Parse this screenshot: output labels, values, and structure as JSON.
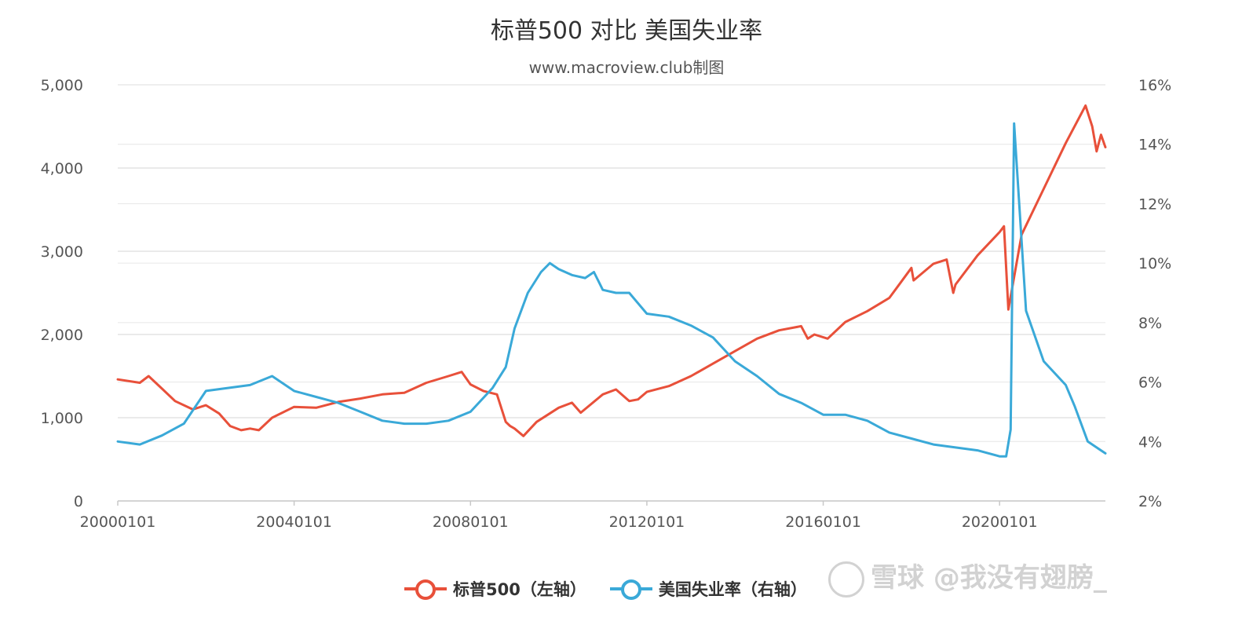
{
  "chart_data": {
    "type": "line",
    "title": "标普500 对比 美国失业率",
    "subtitle": "www.macroview.club制图",
    "x_tick_labels": [
      "20000101",
      "20040101",
      "20080101",
      "20120101",
      "20160101",
      "20200101"
    ],
    "x_ticks_year": [
      2000,
      2004,
      2008,
      2012,
      2016,
      2020
    ],
    "xlim": [
      2000.0,
      2022.4
    ],
    "y_left": {
      "ticks": [
        0,
        1000,
        2000,
        3000,
        4000,
        5000
      ],
      "tick_labels": [
        "0",
        "1,000",
        "2,000",
        "3,000",
        "4,000",
        "5,000"
      ],
      "ylim": [
        0,
        5000
      ]
    },
    "y_right": {
      "ticks": [
        2,
        4,
        6,
        8,
        10,
        12,
        14,
        16
      ],
      "tick_labels": [
        "2%",
        "4%",
        "6%",
        "8%",
        "10%",
        "12%",
        "14%",
        "16%"
      ],
      "ylim": [
        2,
        16
      ]
    },
    "grid": true,
    "legend_position": "bottom",
    "series": [
      {
        "name": "标普500（左轴）",
        "axis": "left",
        "color": "#e8503a",
        "x": [
          2000.0,
          2000.5,
          2000.7,
          2001.0,
          2001.3,
          2001.7,
          2002.0,
          2002.3,
          2002.55,
          2002.8,
          2003.0,
          2003.2,
          2003.5,
          2004.0,
          2004.5,
          2005.0,
          2005.5,
          2006.0,
          2006.5,
          2007.0,
          2007.5,
          2007.8,
          2008.0,
          2008.3,
          2008.6,
          2008.8,
          2008.9,
          2009.0,
          2009.2,
          2009.5,
          2010.0,
          2010.3,
          2010.5,
          2011.0,
          2011.3,
          2011.6,
          2011.8,
          2012.0,
          2012.5,
          2013.0,
          2013.5,
          2014.0,
          2014.5,
          2015.0,
          2015.5,
          2015.65,
          2015.8,
          2016.1,
          2016.5,
          2017.0,
          2017.5,
          2018.0,
          2018.05,
          2018.5,
          2018.8,
          2018.95,
          2019.0,
          2019.5,
          2020.0,
          2020.1,
          2020.2,
          2020.5,
          2021.0,
          2021.5,
          2021.95,
          2022.1,
          2022.2,
          2022.3,
          2022.4
        ],
        "values": [
          1460,
          1420,
          1500,
          1350,
          1200,
          1100,
          1150,
          1050,
          900,
          850,
          870,
          850,
          1000,
          1130,
          1120,
          1190,
          1230,
          1280,
          1300,
          1420,
          1500,
          1550,
          1400,
          1320,
          1280,
          950,
          900,
          870,
          780,
          950,
          1120,
          1180,
          1060,
          1280,
          1340,
          1200,
          1220,
          1310,
          1380,
          1500,
          1650,
          1800,
          1950,
          2050,
          2100,
          1950,
          2000,
          1950,
          2150,
          2280,
          2440,
          2800,
          2650,
          2850,
          2900,
          2500,
          2600,
          2950,
          3230,
          3300,
          2300,
          3200,
          3750,
          4300,
          4750,
          4500,
          4200,
          4400,
          4250
        ]
      },
      {
        "name": "美国失业率（右轴）",
        "axis": "right",
        "color": "#3aa9d8",
        "x": [
          2000.0,
          2000.5,
          2001.0,
          2001.5,
          2002.0,
          2002.5,
          2003.0,
          2003.5,
          2004.0,
          2004.5,
          2005.0,
          2005.5,
          2006.0,
          2006.5,
          2007.0,
          2007.5,
          2008.0,
          2008.5,
          2008.8,
          2009.0,
          2009.3,
          2009.6,
          2009.8,
          2010.0,
          2010.3,
          2010.6,
          2010.8,
          2011.0,
          2011.3,
          2011.6,
          2012.0,
          2012.5,
          2013.0,
          2013.5,
          2014.0,
          2014.5,
          2015.0,
          2015.5,
          2016.0,
          2016.5,
          2017.0,
          2017.5,
          2018.0,
          2018.5,
          2019.0,
          2019.5,
          2020.0,
          2020.15,
          2020.25,
          2020.33,
          2020.6,
          2021.0,
          2021.5,
          2021.7,
          2022.0,
          2022.2,
          2022.4
        ],
        "values": [
          4.0,
          3.9,
          4.2,
          4.6,
          5.7,
          5.8,
          5.9,
          6.2,
          5.7,
          5.5,
          5.3,
          5.0,
          4.7,
          4.6,
          4.6,
          4.7,
          5.0,
          5.8,
          6.5,
          7.8,
          9.0,
          9.7,
          10.0,
          9.8,
          9.6,
          9.5,
          9.7,
          9.1,
          9.0,
          9.0,
          8.3,
          8.2,
          7.9,
          7.5,
          6.7,
          6.2,
          5.6,
          5.3,
          4.9,
          4.9,
          4.7,
          4.3,
          4.1,
          3.9,
          3.8,
          3.7,
          3.5,
          3.5,
          4.4,
          14.7,
          8.4,
          6.7,
          5.9,
          5.2,
          4.0,
          3.8,
          3.6
        ]
      }
    ]
  },
  "legend": {
    "sp500_label": "标普500（左轴）",
    "unemployment_label": "美国失业率（右轴）"
  },
  "watermark": {
    "text": "雪球 @我没有翅膀_"
  }
}
